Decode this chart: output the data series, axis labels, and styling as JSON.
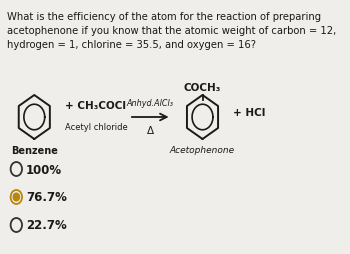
{
  "question_lines": [
    "What is the efficiency of the atom for the reaction of preparing",
    "acetophenone if you know that the atomic weight of carbon = 12,",
    "hydrogen = 1, chlorine = 35.5, and oxygen = 16?"
  ],
  "bg_color": "#f0eeeb",
  "text_color": "#1a1a1a",
  "options": [
    "100%",
    "76.7%",
    "22.7%"
  ],
  "selected_option": 1,
  "selected_fill_color": "#b8860b",
  "selected_edge_color": "#b8860b",
  "unselected_color": "#333333",
  "benzene_label": "Benzene",
  "reagent_line1": "+ CH₃COCl",
  "reagent_line2": "Acetyl chloride",
  "arrow_label_top": "Anhyd.AlCl₃",
  "arrow_label_bottom": "Δ",
  "product_top": "COCH₃",
  "product_label": "Acetophenone",
  "byproduct": "+ HCl",
  "q_fontsize": 7.2,
  "label_fontsize": 7.0,
  "option_fontsize": 8.5
}
